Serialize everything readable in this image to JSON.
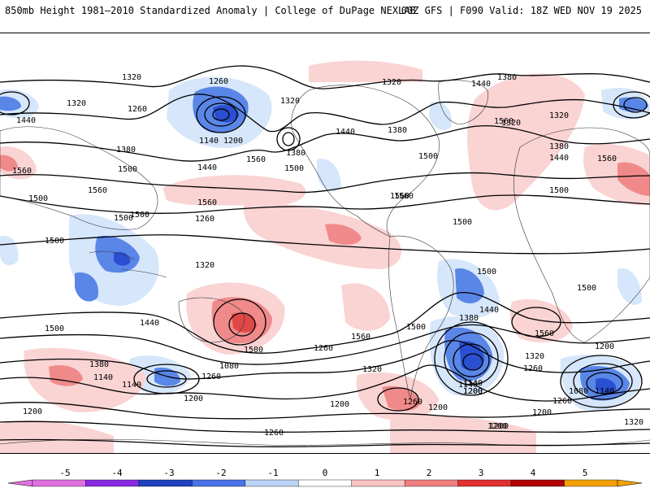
{
  "header": {
    "title": "850mb Height 1981–2010 Standardized Anomaly | College of DuPage NEXLAB",
    "run_info": "00Z GFS | F090 Valid: 18Z WED NOV 19 2025"
  },
  "colorbar": {
    "ticks": [
      "-5",
      "-4",
      "-3",
      "-2",
      "-1",
      "0",
      "1",
      "2",
      "3",
      "4",
      "5"
    ],
    "colors": [
      "#e070e0",
      "#8a2be2",
      "#2040c0",
      "#4a72e8",
      "#bcd4f6",
      "#ffffff",
      "#f9c3c3",
      "#f08080",
      "#e03030",
      "#b00000",
      "#f4a000"
    ]
  },
  "map": {
    "negative_colors": {
      "weak": "#d6e6fb",
      "moderate": "#5a86e8",
      "strong": "#2a4fd0"
    },
    "positive_colors": {
      "weak": "#fad3d3",
      "moderate": "#f08a8a",
      "strong": "#e04848"
    },
    "contour_labels": [
      {
        "text": "1320",
        "id": "l1"
      },
      {
        "text": "1260",
        "id": "l2"
      },
      {
        "text": "1320",
        "id": "l3"
      },
      {
        "text": "1260",
        "id": "l4"
      },
      {
        "text": "1440",
        "id": "l5"
      },
      {
        "text": "1380",
        "id": "l6"
      },
      {
        "text": "1560",
        "id": "l7"
      },
      {
        "text": "1500",
        "id": "l8"
      },
      {
        "text": "1440",
        "id": "l9"
      },
      {
        "text": "1500",
        "id": "l10"
      },
      {
        "text": "1560",
        "id": "l11"
      },
      {
        "text": "1500",
        "id": "l12"
      },
      {
        "text": "1560",
        "id": "l13"
      },
      {
        "text": "1500",
        "id": "l14"
      },
      {
        "text": "1140",
        "id": "l15"
      },
      {
        "text": "1200",
        "id": "l16"
      },
      {
        "text": "1320",
        "id": "l17"
      },
      {
        "text": "1380",
        "id": "l18"
      },
      {
        "text": "1560",
        "id": "l19"
      },
      {
        "text": "1500",
        "id": "l20"
      },
      {
        "text": "1560",
        "id": "l21"
      },
      {
        "text": "1500",
        "id": "l22"
      },
      {
        "text": "1500",
        "id": "l23"
      },
      {
        "text": "1440",
        "id": "l24"
      },
      {
        "text": "1320",
        "id": "l25"
      },
      {
        "text": "1380",
        "id": "l26"
      },
      {
        "text": "1320",
        "id": "l27"
      },
      {
        "text": "1260",
        "id": "l28"
      },
      {
        "text": "1320",
        "id": "l29"
      },
      {
        "text": "1140",
        "id": "l30"
      },
      {
        "text": "1200",
        "id": "l31"
      },
      {
        "text": "1080",
        "id": "l32"
      },
      {
        "text": "1260",
        "id": "l33"
      },
      {
        "text": "1200",
        "id": "l34"
      },
      {
        "text": "1140",
        "id": "l35"
      },
      {
        "text": "1500",
        "id": "l36"
      },
      {
        "text": "1440",
        "id": "l37"
      },
      {
        "text": "1380",
        "id": "l38"
      },
      {
        "text": "1260",
        "id": "l39"
      },
      {
        "text": "1560",
        "id": "l40"
      },
      {
        "text": "1500",
        "id": "l41"
      },
      {
        "text": "1320",
        "id": "l42"
      },
      {
        "text": "1200",
        "id": "l43"
      },
      {
        "text": "1260",
        "id": "l44"
      },
      {
        "text": "1200",
        "id": "l45"
      },
      {
        "text": "1380",
        "id": "l46"
      },
      {
        "text": "1440",
        "id": "l47"
      },
      {
        "text": "1500",
        "id": "l48"
      },
      {
        "text": "1320",
        "id": "l49"
      },
      {
        "text": "1260",
        "id": "l50"
      },
      {
        "text": "1140",
        "id": "l51"
      },
      {
        "text": "1200",
        "id": "l52"
      },
      {
        "text": "1200",
        "id": "l53"
      },
      {
        "text": "1560",
        "id": "l54"
      },
      {
        "text": "1500",
        "id": "l55"
      },
      {
        "text": "1200",
        "id": "l56"
      },
      {
        "text": "1080",
        "id": "l57"
      },
      {
        "text": "1140",
        "id": "l58"
      },
      {
        "text": "1260",
        "id": "l59"
      },
      {
        "text": "1200",
        "id": "l60"
      },
      {
        "text": "1320",
        "id": "l61"
      },
      {
        "text": "1200",
        "id": "l62"
      },
      {
        "text": "1260",
        "id": "l63"
      },
      {
        "text": "1560",
        "id": "l64"
      },
      {
        "text": "1500",
        "id": "l65"
      },
      {
        "text": "1440",
        "id": "l66"
      },
      {
        "text": "1380",
        "id": "l67"
      },
      {
        "text": "1320",
        "id": "l68"
      },
      {
        "text": "1380",
        "id": "l69"
      },
      {
        "text": "1440",
        "id": "l70"
      },
      {
        "text": "1560",
        "id": "l71"
      },
      {
        "text": "1500",
        "id": "l72"
      },
      {
        "text": "1560",
        "id": "l73"
      },
      {
        "text": "1500",
        "id": "l74"
      },
      {
        "text": "1140",
        "id": "l75"
      },
      {
        "text": "1200",
        "id": "l76"
      }
    ]
  }
}
